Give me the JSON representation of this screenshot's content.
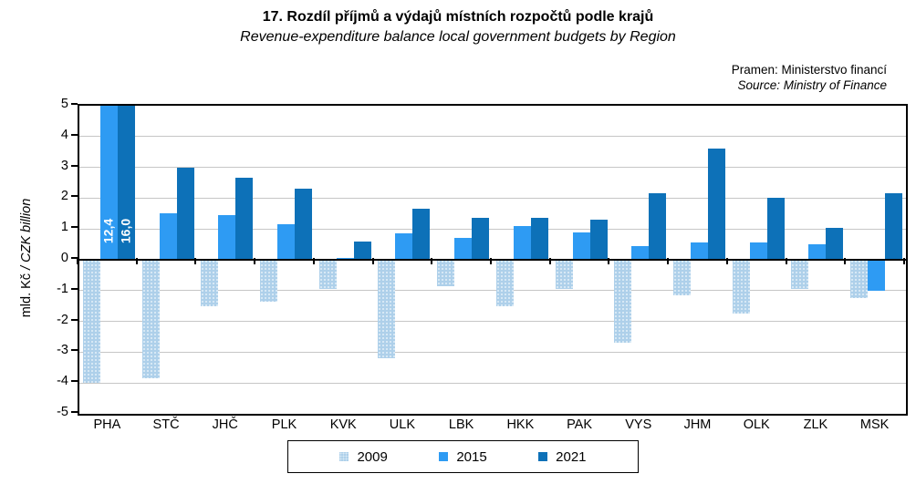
{
  "header": {
    "title": "17. Rozdíl příjmů a výdajů místních rozpočtů podle krajů",
    "subtitle": "Revenue-expenditure balance local government budgets by Region",
    "source_cz": "Pramen: Ministerstvo  financí",
    "source_en": "Source: Ministry of Finance"
  },
  "y_axis": {
    "label_plain": "mld. Kč ",
    "label_italic": "/ CZK billion"
  },
  "chart_data": {
    "type": "bar",
    "title": "17. Rozdíl příjmů a výdajů místních rozpočtů podle krajů",
    "subtitle": "Revenue-expenditure balance local government budgets by Region",
    "ylabel": "mld. Kč / CZK billion",
    "ylim": [
      -5,
      5
    ],
    "yticks": [
      5,
      4,
      3,
      2,
      1,
      0,
      -1,
      -2,
      -3,
      -4,
      -5
    ],
    "grid": true,
    "legend_position": "bottom",
    "categories": [
      "PHA",
      "STČ",
      "JHČ",
      "PLK",
      "KVK",
      "ULK",
      "LBK",
      "HKK",
      "PAK",
      "VYS",
      "JHM",
      "OLK",
      "ZLK",
      "MSK"
    ],
    "series": [
      {
        "name": "2009",
        "color": "#aed0ea",
        "pattern": "dotted",
        "values": [
          -4.0,
          -3.85,
          -1.5,
          -1.35,
          -0.95,
          -3.2,
          -0.85,
          -1.5,
          -0.95,
          -2.7,
          -1.15,
          -1.75,
          -0.95,
          -1.25
        ]
      },
      {
        "name": "2015",
        "color": "#2e9bf3",
        "values": [
          12.4,
          1.5,
          1.45,
          1.15,
          0.05,
          0.85,
          0.7,
          1.1,
          0.9,
          0.45,
          0.55,
          0.55,
          0.5,
          -1.0
        ]
      },
      {
        "name": "2021",
        "color": "#0d71b8",
        "values": [
          16.0,
          3.0,
          2.65,
          2.3,
          0.6,
          1.65,
          1.35,
          1.35,
          1.3,
          2.15,
          3.6,
          2.0,
          1.05,
          2.15
        ]
      }
    ],
    "clipped_bar_labels": [
      {
        "category": "PHA",
        "series": "2015",
        "label": "12,4",
        "value": 12.4
      },
      {
        "category": "PHA",
        "series": "2021",
        "label": "16,0",
        "value": 16.0
      }
    ]
  }
}
